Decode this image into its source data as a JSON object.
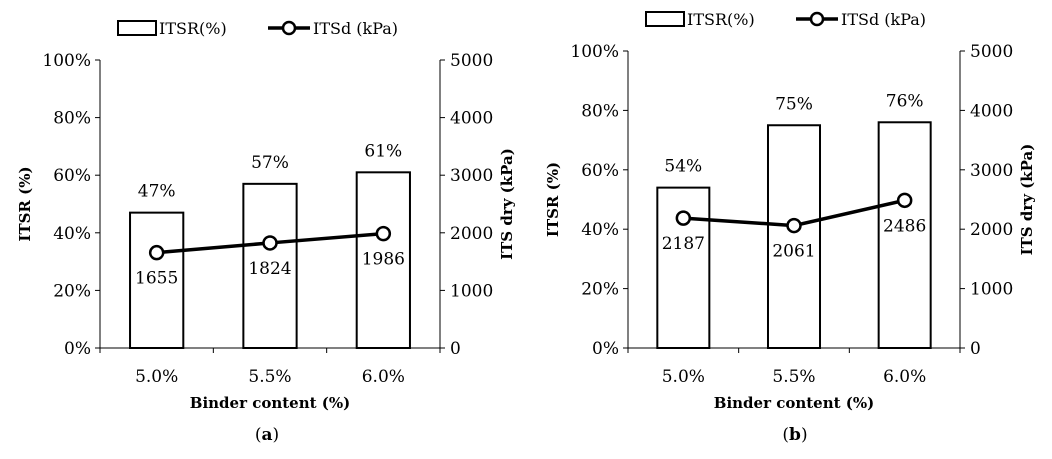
{
  "chart_data": [
    {
      "type": "bar",
      "panel_label": "a",
      "legend": {
        "bars": "ITSR(%)",
        "line": "ITSd (kPa)",
        "position": "top"
      },
      "xlabel": "Binder content (%)",
      "ylabel": "ITSR (%)",
      "y2label": "ITS dry (kPa)",
      "categories": [
        "5.0%",
        "5.5%",
        "6.0%"
      ],
      "ylim": [
        0,
        100
      ],
      "y2lim": [
        0,
        5000
      ],
      "yticks": [
        "0%",
        "20%",
        "40%",
        "60%",
        "80%",
        "100%"
      ],
      "y2ticks": [
        "0",
        "1000",
        "2000",
        "3000",
        "4000",
        "5000"
      ],
      "series": [
        {
          "name": "ITSR(%)",
          "kind": "bar",
          "axis": "left",
          "values": [
            47,
            57,
            61
          ],
          "labels": [
            "47%",
            "57%",
            "61%"
          ]
        },
        {
          "name": "ITSd (kPa)",
          "kind": "line",
          "axis": "right",
          "values": [
            1655,
            1824,
            1986
          ],
          "labels": [
            "1655",
            "1824",
            "1986"
          ]
        }
      ]
    },
    {
      "type": "bar",
      "panel_label": "b",
      "legend": {
        "bars": "ITSR(%)",
        "line": "ITSd (kPa)",
        "position": "top"
      },
      "xlabel": "Binder content (%)",
      "ylabel": "ITSR (%)",
      "y2label": "ITS dry (kPa)",
      "categories": [
        "5.0%",
        "5.5%",
        "6.0%"
      ],
      "ylim": [
        0,
        100
      ],
      "y2lim": [
        0,
        5000
      ],
      "yticks": [
        "0%",
        "20%",
        "40%",
        "60%",
        "80%",
        "100%"
      ],
      "y2ticks": [
        "0",
        "1000",
        "2000",
        "3000",
        "4000",
        "5000"
      ],
      "series": [
        {
          "name": "ITSR(%)",
          "kind": "bar",
          "axis": "left",
          "values": [
            54,
            75,
            76
          ],
          "labels": [
            "54%",
            "75%",
            "76%"
          ]
        },
        {
          "name": "ITSd (kPa)",
          "kind": "line",
          "axis": "right",
          "values": [
            2187,
            2061,
            2486
          ],
          "labels": [
            "2187",
            "2061",
            "2486"
          ]
        }
      ]
    }
  ]
}
